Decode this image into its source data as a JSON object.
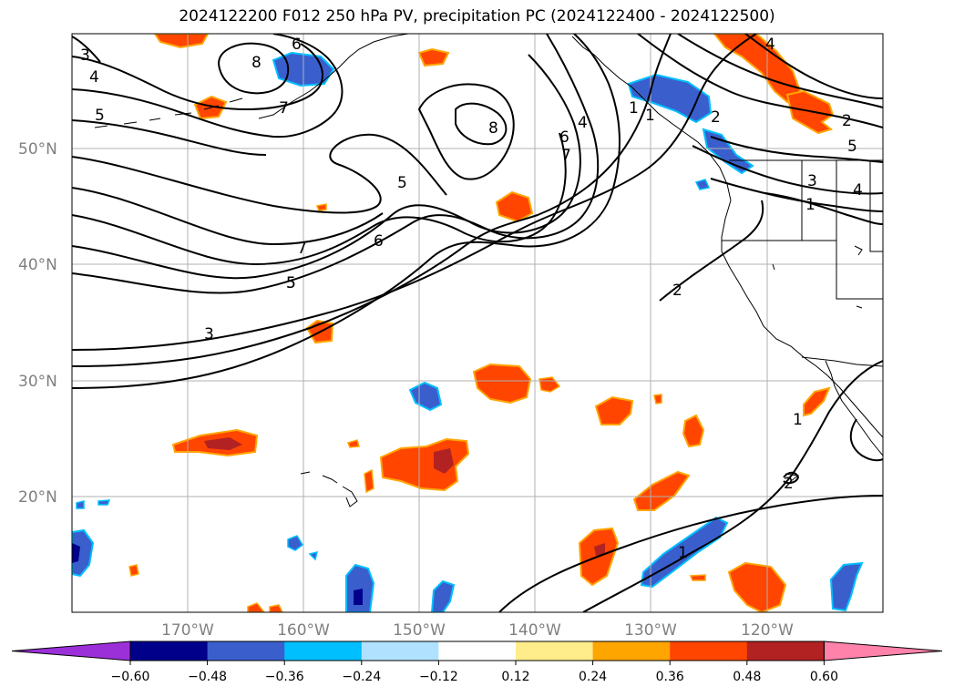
{
  "title": "2024122200 F012 250 hPa PV, precipitation PC (2024122400 - 2024122500)",
  "latitude_labels": [
    "50°N",
    "40°N",
    "30°N",
    "20°N"
  ],
  "longitude_labels": [
    "170°W",
    "160°W",
    "150°W",
    "140°W",
    "130°W",
    "120°W"
  ],
  "contour_labels": [
    "3",
    "4",
    "5",
    "6",
    "7",
    "8",
    "5",
    "8",
    "7",
    "6",
    "4",
    "5",
    "7",
    "6",
    "5",
    "3",
    "1",
    "1",
    "2",
    "2",
    "3",
    "4",
    "5",
    "1",
    "2",
    "1",
    "2",
    "1"
  ],
  "colorbar": {
    "ticks": [
      "−0.60",
      "−0.48",
      "−0.36",
      "−0.24",
      "−0.12",
      "0.12",
      "0.24",
      "0.36",
      "0.48",
      "0.60"
    ],
    "colors": [
      "#9b30d9",
      "#00008b",
      "#3a5fcd",
      "#00bfff",
      "#b0e2ff",
      "#ffffff",
      "#ffec8b",
      "#ffa500",
      "#ff4500",
      "#b22222",
      "#ff82ab"
    ]
  }
}
